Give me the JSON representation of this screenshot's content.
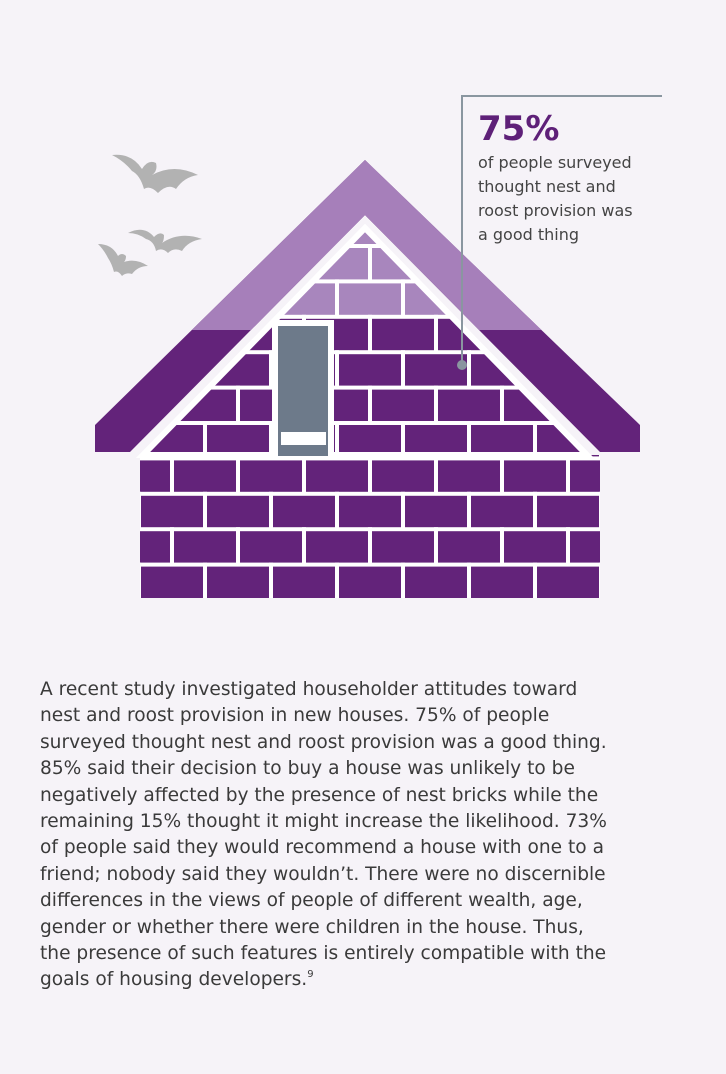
{
  "callout": {
    "stat": "75%",
    "lines": [
      "of people surveyed",
      "thought nest and",
      "roost provision was",
      "a good thing"
    ]
  },
  "paragraph": {
    "lines": [
      "A recent study investigated householder attitudes toward",
      "nest and roost provision in new houses. 75% of people",
      "surveyed thought nest and roost provision was a good thing.",
      "85% said their decision to buy a house was unlikely to be",
      "negatively affected by the presence of nest bricks while the",
      "remaining 15% thought it might increase the likelihood. 73%",
      "of people said they would recommend a house with one to a",
      "friend; nobody said they wouldn’t. There were no discernible",
      "differences in the views of people of different wealth, age,",
      "gender or whether there were children in the house. Thus,",
      "the presence of such features is entirely compatible with the",
      "goals of housing developers."
    ],
    "footnote": "9"
  }
}
